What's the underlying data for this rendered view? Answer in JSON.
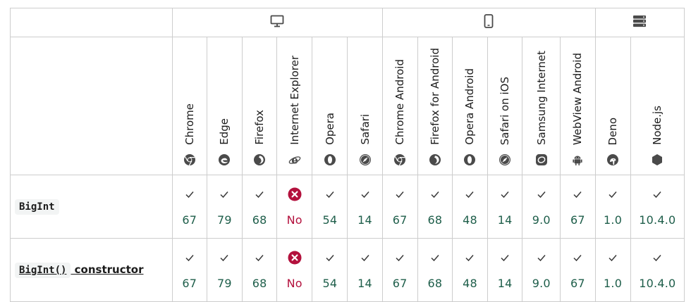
{
  "groups": [
    {
      "icon": "desktop-icon",
      "span": 6
    },
    {
      "icon": "mobile-icon",
      "span": 6
    },
    {
      "icon": "server-icon",
      "span": 2
    }
  ],
  "browsers": [
    {
      "name": "Chrome",
      "icon": "chrome-icon"
    },
    {
      "name": "Edge",
      "icon": "edge-icon"
    },
    {
      "name": "Firefox",
      "icon": "firefox-icon"
    },
    {
      "name": "Internet Explorer",
      "icon": "ie-icon"
    },
    {
      "name": "Opera",
      "icon": "opera-icon"
    },
    {
      "name": "Safari",
      "icon": "safari-icon"
    },
    {
      "name": "Chrome Android",
      "icon": "chrome-icon"
    },
    {
      "name": "Firefox for Android",
      "icon": "firefox-icon"
    },
    {
      "name": "Opera Android",
      "icon": "opera-icon"
    },
    {
      "name": "Safari on iOS",
      "icon": "safari-icon"
    },
    {
      "name": "Samsung Internet",
      "icon": "samsung-icon"
    },
    {
      "name": "WebView Android",
      "icon": "android-icon"
    },
    {
      "name": "Deno",
      "icon": "deno-icon"
    },
    {
      "name": "Node.js",
      "icon": "nodejs-icon"
    }
  ],
  "rows": [
    {
      "feature_code": "BigInt",
      "feature_text": "",
      "is_link": false,
      "support": [
        {
          "mark": "yes",
          "version": "67"
        },
        {
          "mark": "yes",
          "version": "79"
        },
        {
          "mark": "yes",
          "version": "68"
        },
        {
          "mark": "no",
          "version": "No"
        },
        {
          "mark": "yes",
          "version": "54"
        },
        {
          "mark": "yes",
          "version": "14"
        },
        {
          "mark": "yes",
          "version": "67"
        },
        {
          "mark": "yes",
          "version": "68"
        },
        {
          "mark": "yes",
          "version": "48"
        },
        {
          "mark": "yes",
          "version": "14"
        },
        {
          "mark": "yes",
          "version": "9.0"
        },
        {
          "mark": "yes",
          "version": "67"
        },
        {
          "mark": "yes",
          "version": "1.0"
        },
        {
          "mark": "yes",
          "version": "10.4.0"
        }
      ]
    },
    {
      "feature_code": "BigInt()",
      "feature_text": " constructor",
      "is_link": true,
      "support": [
        {
          "mark": "yes",
          "version": "67"
        },
        {
          "mark": "yes",
          "version": "79"
        },
        {
          "mark": "yes",
          "version": "68"
        },
        {
          "mark": "no",
          "version": "No"
        },
        {
          "mark": "yes",
          "version": "54"
        },
        {
          "mark": "yes",
          "version": "14"
        },
        {
          "mark": "yes",
          "version": "67"
        },
        {
          "mark": "yes",
          "version": "68"
        },
        {
          "mark": "yes",
          "version": "48"
        },
        {
          "mark": "yes",
          "version": "14"
        },
        {
          "mark": "yes",
          "version": "9.0"
        },
        {
          "mark": "yes",
          "version": "67"
        },
        {
          "mark": "yes",
          "version": "1.0"
        },
        {
          "mark": "yes",
          "version": "10.4.0"
        }
      ]
    }
  ],
  "colors": {
    "yes_version": "#1e5e4a",
    "no_version": "#b3113d",
    "border": "#cdcdcd",
    "icon": "#4a4a4a"
  }
}
